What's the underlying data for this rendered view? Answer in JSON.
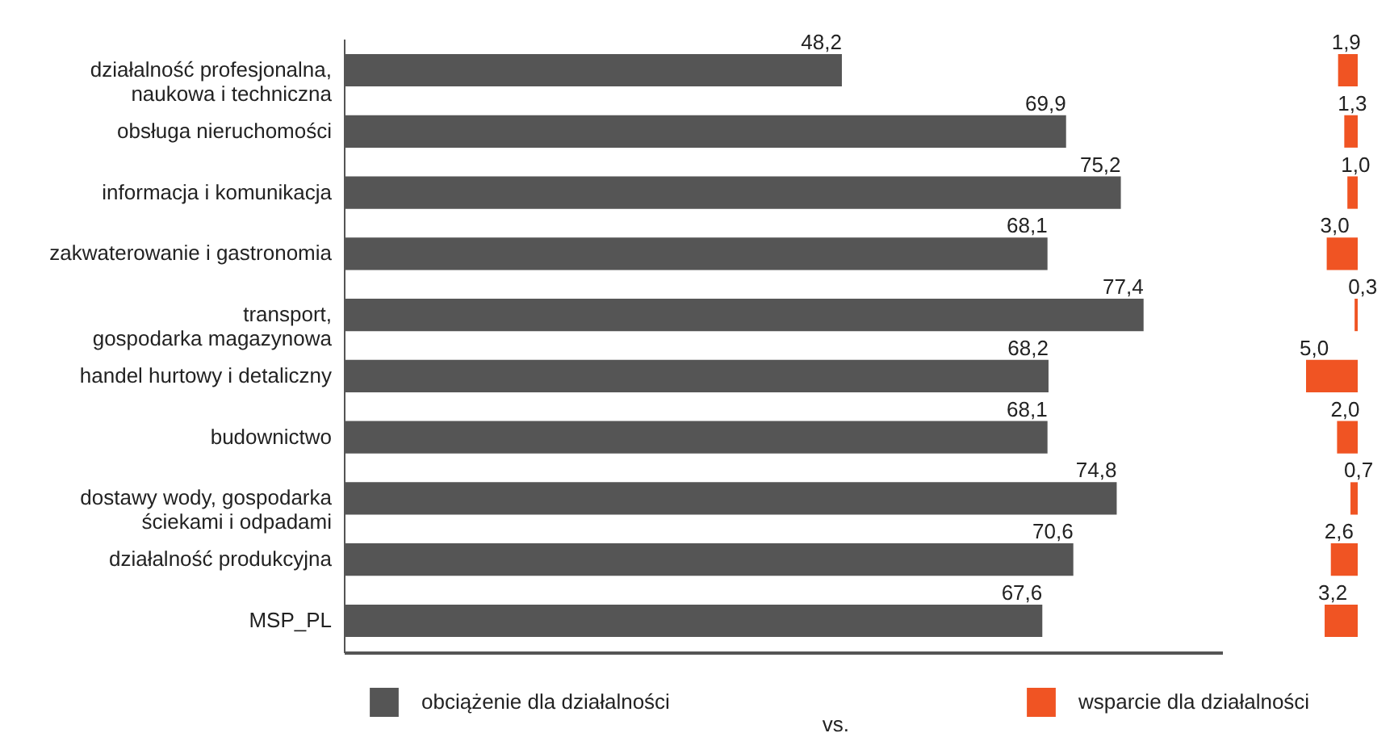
{
  "chart_data": [
    {
      "type": "bar",
      "orientation": "horizontal",
      "categories": [
        "działalność profesjonalna,\nnaukowa i techniczna",
        "obsługa nieruchomości",
        "informacja i komunikacja",
        "zakwaterowanie i gastronomia",
        "transport,\ngospodarka magazynowa",
        "handel hurtowy i detaliczny",
        "budownictwo",
        "dostawy wody, gospodarka\nściekami i odpadami",
        "działalność produkcyjna",
        "MSP_PL"
      ],
      "series": [
        {
          "name": "obciążenie dla działalności",
          "color": "#555555",
          "values": [
            48.2,
            69.9,
            75.2,
            68.1,
            77.4,
            68.2,
            68.1,
            74.8,
            70.6,
            67.6
          ],
          "value_labels": [
            "48,2",
            "69,9",
            "75,2",
            "68,1",
            "77,4",
            "68,2",
            "68,1",
            "74,8",
            "70,6",
            "67,6"
          ]
        }
      ],
      "xlim": [
        0,
        85
      ],
      "tick_labels": "y",
      "legend": "bottom left",
      "annotations": [
        "vs."
      ]
    },
    {
      "type": "bar",
      "orientation": "horizontal",
      "categories": [
        null,
        null,
        null,
        null,
        null,
        null,
        null,
        null,
        null,
        null
      ],
      "series": [
        {
          "name": "wsparcie dla działalności",
          "color": "#f05423",
          "values": [
            1.9,
            1.3,
            1.0,
            3.0,
            0.3,
            5.0,
            2.0,
            0.7,
            2.6,
            3.2
          ],
          "value_labels": [
            "1,9",
            "1,3",
            "1,0",
            "3,0",
            "0,3",
            "5,0",
            "2,0",
            "0,7",
            "2,6",
            "3,2"
          ]
        }
      ],
      "tick_labels": false,
      "legend": "bottom left"
    }
  ]
}
